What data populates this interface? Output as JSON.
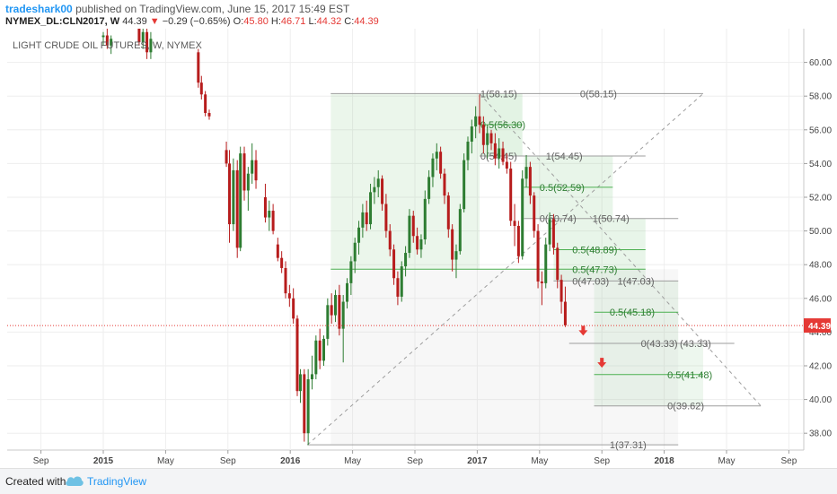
{
  "header": {
    "author": "tradeshark00",
    "published": "published on TradingView.com, June 15, 2017 15:49 EST",
    "symbol": "NYMEX_DL:CLN2017, W",
    "last": "44.39",
    "change": "−0.29 (−0.65%)",
    "open_label": "O:",
    "open": "45.80",
    "high_label": "H:",
    "high": "46.71",
    "low_label": "L:",
    "low": "44.32",
    "close_label": "C:",
    "close": "44.39",
    "down_arrow": "▼"
  },
  "chart_data": {
    "type": "candlestick",
    "title": "LIGHT CRUDE OIL FUTURES, W, NYMEX",
    "ylim": [
      37,
      62
    ],
    "yticks": [
      38,
      40,
      42,
      44,
      46,
      48,
      50,
      52,
      54,
      56,
      58,
      60
    ],
    "x_ticks": [
      {
        "label": "Sep",
        "t": -4,
        "bold": false
      },
      {
        "label": "2015",
        "t": 0,
        "bold": true
      },
      {
        "label": "May",
        "t": 4,
        "bold": false
      },
      {
        "label": "Sep",
        "t": 8,
        "bold": false
      },
      {
        "label": "2016",
        "t": 12,
        "bold": true
      },
      {
        "label": "May",
        "t": 16,
        "bold": false
      },
      {
        "label": "Sep",
        "t": 20,
        "bold": false
      },
      {
        "label": "2017",
        "t": 24,
        "bold": true
      },
      {
        "label": "May",
        "t": 28,
        "bold": false
      },
      {
        "label": "Sep",
        "t": 32,
        "bold": false
      },
      {
        "label": "2018",
        "t": 36,
        "bold": true
      },
      {
        "label": "May",
        "t": 40,
        "bold": false
      },
      {
        "label": "Sep",
        "t": 44,
        "bold": false
      }
    ],
    "x_unit": "months since Jan 2015",
    "current_price": "44.39",
    "candles": [
      [
        0.0,
        61.5,
        61.8,
        61.0,
        61.6
      ],
      [
        0.25,
        61.6,
        62.0,
        60.8,
        61.0
      ],
      [
        0.5,
        61.0,
        61.6,
        60.5,
        61.4
      ],
      [
        2.3,
        62.0,
        62.4,
        61.0,
        61.2
      ],
      [
        2.55,
        61.2,
        62.2,
        60.8,
        61.8
      ],
      [
        2.8,
        61.8,
        62.0,
        60.2,
        60.6
      ],
      [
        3.05,
        60.6,
        61.8,
        60.2,
        61.4
      ],
      [
        6.1,
        60.6,
        60.8,
        58.5,
        58.8
      ],
      [
        6.3,
        58.8,
        59.2,
        57.8,
        58.1
      ],
      [
        6.55,
        58.1,
        58.3,
        56.8,
        57.0
      ],
      [
        6.8,
        57.0,
        57.2,
        56.6,
        56.8
      ],
      [
        7.9,
        54.8,
        55.3,
        53.8,
        54.0
      ],
      [
        8.1,
        54.0,
        54.8,
        49.3,
        50.4
      ],
      [
        8.35,
        50.4,
        54.3,
        50.0,
        53.6
      ],
      [
        8.6,
        53.6,
        54.2,
        48.4,
        49.0
      ],
      [
        8.8,
        49.0,
        55.0,
        48.8,
        54.6
      ],
      [
        9.05,
        54.6,
        55.0,
        51.8,
        52.4
      ],
      [
        9.3,
        52.4,
        53.8,
        51.2,
        53.4
      ],
      [
        9.55,
        53.4,
        55.2,
        52.8,
        54.2
      ],
      [
        9.8,
        54.2,
        54.8,
        52.5,
        53.0
      ],
      [
        10.4,
        52.0,
        52.8,
        50.5,
        50.8
      ],
      [
        10.65,
        50.8,
        51.8,
        50.0,
        51.2
      ],
      [
        10.9,
        51.2,
        51.6,
        49.8,
        50.0
      ],
      [
        11.2,
        49.2,
        49.6,
        48.2,
        48.4
      ],
      [
        11.45,
        48.4,
        48.8,
        47.5,
        47.8
      ],
      [
        11.7,
        47.8,
        48.2,
        46.0,
        46.3
      ],
      [
        11.95,
        46.3,
        46.8,
        45.5,
        46.0
      ],
      [
        12.2,
        46.0,
        46.6,
        44.5,
        44.8
      ],
      [
        12.45,
        44.8,
        45.0,
        40.2,
        40.5
      ],
      [
        12.65,
        40.5,
        41.8,
        39.8,
        41.5
      ],
      [
        12.9,
        41.5,
        41.8,
        37.5,
        38.0
      ],
      [
        13.15,
        38.0,
        41.8,
        37.3,
        41.2
      ],
      [
        13.4,
        41.2,
        42.6,
        40.6,
        41.5
      ],
      [
        13.65,
        41.5,
        43.8,
        41.2,
        43.5
      ],
      [
        13.9,
        43.5,
        44.2,
        41.8,
        42.3
      ],
      [
        14.15,
        42.3,
        43.8,
        42.0,
        43.6
      ],
      [
        14.4,
        43.6,
        46.0,
        43.2,
        45.6
      ],
      [
        14.65,
        45.6,
        46.3,
        44.5,
        45.0
      ],
      [
        14.9,
        45.0,
        46.5,
        44.6,
        46.2
      ],
      [
        15.15,
        46.2,
        46.8,
        43.8,
        44.2
      ],
      [
        15.4,
        44.2,
        46.2,
        42.2,
        45.8
      ],
      [
        15.65,
        45.8,
        47.2,
        45.4,
        46.9
      ],
      [
        15.9,
        46.9,
        48.5,
        46.2,
        48.2
      ],
      [
        16.15,
        48.2,
        49.6,
        47.5,
        49.3
      ],
      [
        16.4,
        49.3,
        50.6,
        48.6,
        50.2
      ],
      [
        16.65,
        50.2,
        51.6,
        49.6,
        51.1
      ],
      [
        16.9,
        51.1,
        51.8,
        50.0,
        50.4
      ],
      [
        17.15,
        50.4,
        52.8,
        50.1,
        52.3
      ],
      [
        17.4,
        52.3,
        53.2,
        51.6,
        52.6
      ],
      [
        17.65,
        52.6,
        53.6,
        52.0,
        53.1
      ],
      [
        17.9,
        53.1,
        53.3,
        51.2,
        51.6
      ],
      [
        18.15,
        51.6,
        52.2,
        49.6,
        50.0
      ],
      [
        18.4,
        50.0,
        50.4,
        48.5,
        48.9
      ],
      [
        18.65,
        48.9,
        49.2,
        46.8,
        47.2
      ],
      [
        18.9,
        47.2,
        47.6,
        45.6,
        46.1
      ],
      [
        19.15,
        46.1,
        48.2,
        45.8,
        47.9
      ],
      [
        19.4,
        47.9,
        49.1,
        47.3,
        48.7
      ],
      [
        19.65,
        48.7,
        51.3,
        48.4,
        50.9
      ],
      [
        19.9,
        50.9,
        51.2,
        49.3,
        49.7
      ],
      [
        20.15,
        49.7,
        50.2,
        48.6,
        48.9
      ],
      [
        20.4,
        48.9,
        49.8,
        48.4,
        49.5
      ],
      [
        20.65,
        49.5,
        52.4,
        49.2,
        51.9
      ],
      [
        20.9,
        51.9,
        53.6,
        51.6,
        53.2
      ],
      [
        21.15,
        53.2,
        54.6,
        52.6,
        54.3
      ],
      [
        21.4,
        54.3,
        55.2,
        53.6,
        54.7
      ],
      [
        21.65,
        54.7,
        55.0,
        53.1,
        53.4
      ],
      [
        21.9,
        53.4,
        53.7,
        51.6,
        52.1
      ],
      [
        22.15,
        52.1,
        52.3,
        49.6,
        50.1
      ],
      [
        22.4,
        50.1,
        50.4,
        47.6,
        48.3
      ],
      [
        22.65,
        48.3,
        49.2,
        47.2,
        48.8
      ],
      [
        22.9,
        48.8,
        51.6,
        48.6,
        51.3
      ],
      [
        23.15,
        51.3,
        54.6,
        51.1,
        54.2
      ],
      [
        23.4,
        54.2,
        55.6,
        53.6,
        55.3
      ],
      [
        23.65,
        55.3,
        56.6,
        54.6,
        56.2
      ],
      [
        23.9,
        56.2,
        57.4,
        55.5,
        56.8
      ],
      [
        24.15,
        56.8,
        58.1,
        55.8,
        56.3
      ],
      [
        24.4,
        56.3,
        56.8,
        54.6,
        55.1
      ],
      [
        24.65,
        55.1,
        56.3,
        54.3,
        55.8
      ],
      [
        24.9,
        55.8,
        56.0,
        54.8,
        55.2
      ],
      [
        25.15,
        55.2,
        55.8,
        53.9,
        54.3
      ],
      [
        25.4,
        54.3,
        55.5,
        53.7,
        54.9
      ],
      [
        25.65,
        54.9,
        55.3,
        53.9,
        54.1
      ],
      [
        25.9,
        54.1,
        54.6,
        53.4,
        53.7
      ],
      [
        26.15,
        53.7,
        54.1,
        50.3,
        50.6
      ],
      [
        26.4,
        50.6,
        51.6,
        49.1,
        50.3
      ],
      [
        26.65,
        50.3,
        50.6,
        48.1,
        48.5
      ],
      [
        26.9,
        48.5,
        53.6,
        48.3,
        53.1
      ],
      [
        27.15,
        53.1,
        54.5,
        52.6,
        53.8
      ],
      [
        27.4,
        53.8,
        54.1,
        51.6,
        52.1
      ],
      [
        27.65,
        52.1,
        52.3,
        49.6,
        50.0
      ],
      [
        27.9,
        50.0,
        50.4,
        46.6,
        47.0
      ],
      [
        28.15,
        47.0,
        47.6,
        45.6,
        46.9
      ],
      [
        28.4,
        46.9,
        49.6,
        46.6,
        49.2
      ],
      [
        28.65,
        49.2,
        51.1,
        48.8,
        50.7
      ],
      [
        28.9,
        50.7,
        51.0,
        48.6,
        49.0
      ],
      [
        29.15,
        49.0,
        49.3,
        46.6,
        47.1
      ],
      [
        29.4,
        47.1,
        47.4,
        45.1,
        45.8
      ],
      [
        29.65,
        45.8,
        46.7,
        44.3,
        44.4
      ]
    ],
    "fib_lines": [
      {
        "y": 58.15,
        "x1": 14.6,
        "x2": 38.5,
        "color": "#9e9e9e",
        "label": "1(58.15)",
        "lx": 24.2,
        "label2": "0(58.15)",
        "lx2": 30.6
      },
      {
        "y": 56.3,
        "x1": 24.15,
        "x2": 26.9,
        "color": "#4caf50",
        "label": "0.5(56.30)",
        "lx": 24.2
      },
      {
        "y": 54.45,
        "x1": 24.15,
        "x2": 34.8,
        "color": "#9e9e9e",
        "label": "0(54.45)",
        "lx": 24.2,
        "label2": "1(54.45)",
        "lx2": 28.4
      },
      {
        "y": 52.59,
        "x1": 27.0,
        "x2": 32.7,
        "color": "#4caf50",
        "label": "0.5(52.59)",
        "lx": 28.0
      },
      {
        "y": 50.74,
        "x1": 27.0,
        "x2": 36.9,
        "color": "#9e9e9e",
        "label": "0(50.74)",
        "lx": 28.0,
        "label2": "1(50.74)",
        "lx2": 31.4
      },
      {
        "y": 48.89,
        "x1": 28.9,
        "x2": 34.8,
        "color": "#4caf50",
        "label": "0.5(48.89)",
        "lx": 30.1
      },
      {
        "y": 47.73,
        "x1": 14.6,
        "x2": 34.8,
        "color": "#4caf50",
        "label": "0.5(47.73)",
        "lx": 30.1
      },
      {
        "y": 47.03,
        "x1": 28.9,
        "x2": 36.9,
        "color": "#9e9e9e",
        "label": "0(47.03)",
        "lx": 30.1,
        "label2": "1(47.03)",
        "lx2": 33.0
      },
      {
        "y": 45.18,
        "x1": 31.5,
        "x2": 36.9,
        "color": "#4caf50",
        "label": "0.5(45.18)",
        "lx": 32.5
      },
      {
        "y": 43.33,
        "x1": 29.9,
        "x2": 40.5,
        "color": "#9e9e9e",
        "label": "0(43.33)",
        "lx": 34.5,
        "label2": "(43.33)",
        "lx2": 37.0
      },
      {
        "y": 41.48,
        "x1": 31.5,
        "x2": 38.5,
        "color": "#4caf50",
        "label": "0.5(41.48)",
        "lx": 36.2
      },
      {
        "y": 39.62,
        "x1": 31.5,
        "x2": 42.2,
        "color": "#9e9e9e",
        "label": "0(39.62)",
        "lx": 36.2
      },
      {
        "y": 37.31,
        "x1": 13.1,
        "x2": 36.9,
        "color": "#9e9e9e",
        "label": "1(37.31)",
        "lx": 32.5
      }
    ],
    "zones": [
      {
        "x1": 14.6,
        "x2": 24.15,
        "y1": 47.73,
        "y2": 58.15,
        "color": "rgba(129,199,132,0.16)"
      },
      {
        "x1": 24.15,
        "x2": 26.9,
        "y1": 54.45,
        "y2": 58.15,
        "color": "rgba(129,199,132,0.22)"
      },
      {
        "x1": 27.0,
        "x2": 32.7,
        "y1": 50.74,
        "y2": 54.45,
        "color": "rgba(129,199,132,0.18)"
      },
      {
        "x1": 28.9,
        "x2": 34.8,
        "y1": 47.03,
        "y2": 50.74,
        "color": "rgba(129,199,132,0.18)"
      },
      {
        "x1": 31.5,
        "x2": 36.9,
        "y1": 43.33,
        "y2": 47.03,
        "color": "rgba(129,199,132,0.14)"
      },
      {
        "x1": 31.5,
        "x2": 38.5,
        "y1": 39.62,
        "y2": 43.33,
        "color": "rgba(129,199,132,0.14)"
      },
      {
        "x1": 14.6,
        "x2": 36.9,
        "y1": 37.31,
        "y2": 47.73,
        "color": "rgba(200,200,200,0.14)"
      }
    ],
    "diagonals": [
      {
        "x1": 13.1,
        "y1": 37.31,
        "x2": 38.5,
        "y2": 58.15
      },
      {
        "x1": 24.15,
        "y1": 58.15,
        "x2": 42.2,
        "y2": 39.62
      }
    ],
    "red_arrows": [
      {
        "t": 30.8,
        "y": 44.0
      },
      {
        "t": 32.0,
        "y": 42.1
      }
    ]
  },
  "footer": {
    "created_with": "Created with",
    "brand": "TradingView"
  }
}
